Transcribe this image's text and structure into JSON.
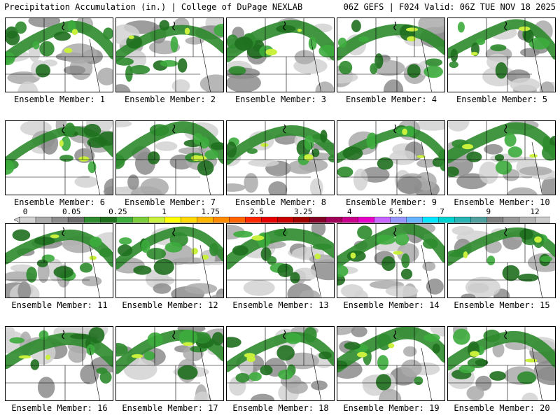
{
  "header": {
    "title_left": "Precipitation Accumulation (in.) | College of DuPage NEXLAB",
    "title_right": "06Z GEFS | F024 Valid: 06Z TUE NOV 18 2025"
  },
  "colors": {
    "bg": "#ffffff",
    "border": "#000000",
    "levels": [
      "#d2d2d2",
      "#aaaaaa",
      "#8c8c8c",
      "#6e6e6e",
      "#2e8b2e",
      "#1f6f1f",
      "#3cac3c",
      "#7ccd3c",
      "#c8f03c",
      "#ffff00",
      "#ffd700",
      "#ffb400",
      "#ff8c00",
      "#ff6400",
      "#ff2800",
      "#e60000",
      "#c80000",
      "#a00000",
      "#820028",
      "#a0005a",
      "#c8008c",
      "#e600c8",
      "#c864ff",
      "#9696ff",
      "#64b4ff",
      "#00e6ff",
      "#00d2d2",
      "#28b4b4",
      "#50a0a0",
      "#808080",
      "#999999",
      "#b4b4b4",
      "#cccccc"
    ]
  },
  "chart_data": {
    "type": "heatmap",
    "title": "Precipitation Accumulation (in.)",
    "source": "College of DuPage NEXLAB",
    "model": "06Z GEFS",
    "forecast_hour": "F024",
    "valid": "06Z TUE NOV 18 2025",
    "colorbar": {
      "tick_labels": [
        "0",
        "0.05",
        "0.25",
        "1",
        "1.75",
        "2.5",
        "3.25",
        "4",
        "5.5",
        "7",
        "9",
        "12"
      ],
      "min": 0,
      "max": 12
    },
    "members": [
      {
        "label": "Ensemble Member: 1",
        "member": 1
      },
      {
        "label": "Ensemble Member: 2",
        "member": 2
      },
      {
        "label": "Ensemble Member: 3",
        "member": 3
      },
      {
        "label": "Ensemble Member: 4",
        "member": 4
      },
      {
        "label": "Ensemble Member: 5",
        "member": 5
      },
      {
        "label": "Ensemble Member: 6",
        "member": 6
      },
      {
        "label": "Ensemble Member: 7",
        "member": 7
      },
      {
        "label": "Ensemble Member: 8",
        "member": 8
      },
      {
        "label": "Ensemble Member: 9",
        "member": 9
      },
      {
        "label": "Ensemble Member: 10",
        "member": 10
      },
      {
        "label": "Ensemble Member: 11",
        "member": 11
      },
      {
        "label": "Ensemble Member: 12",
        "member": 12
      },
      {
        "label": "Ensemble Member: 13",
        "member": 13
      },
      {
        "label": "Ensemble Member: 14",
        "member": 14
      },
      {
        "label": "Ensemble Member: 15",
        "member": 15
      },
      {
        "label": "Ensemble Member: 16",
        "member": 16
      },
      {
        "label": "Ensemble Member: 17",
        "member": 17
      },
      {
        "label": "Ensemble Member: 18",
        "member": 18
      },
      {
        "label": "Ensemble Member: 19",
        "member": 19
      },
      {
        "label": "Ensemble Member: 20",
        "member": 20
      }
    ]
  }
}
